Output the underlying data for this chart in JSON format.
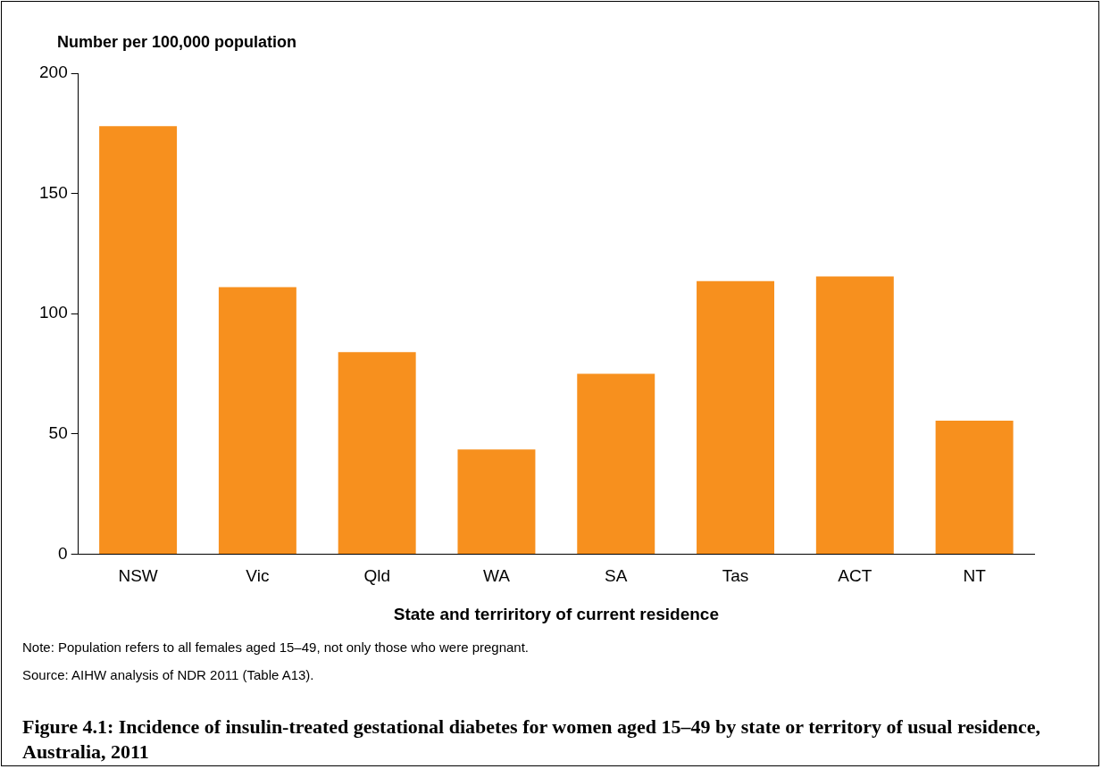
{
  "chart_data": {
    "type": "bar",
    "title": "Figure 4.1: Incidence of insulin-treated gestational diabetes for women aged 15–49 by state or territory of usual residence, Australia, 2011",
    "ylabel": "Number per 100,000 population",
    "xlabel": "State and terriritory of current residence",
    "categories": [
      "NSW",
      "Vic",
      "Qld",
      "WA",
      "SA",
      "Tas",
      "ACT",
      "NT"
    ],
    "values": [
      178,
      111,
      84,
      43.5,
      75,
      113.5,
      115.5,
      55.5
    ],
    "color": "#f7901e",
    "ylim": [
      0,
      200
    ],
    "yticks": [
      0,
      50,
      100,
      150,
      200
    ],
    "grid": false,
    "legend": false,
    "annotations": [
      "Note: Population refers to all females aged 15–49, not only those who were pregnant.",
      "Source: AIHW analysis of NDR 2011 (Table A13)."
    ]
  }
}
